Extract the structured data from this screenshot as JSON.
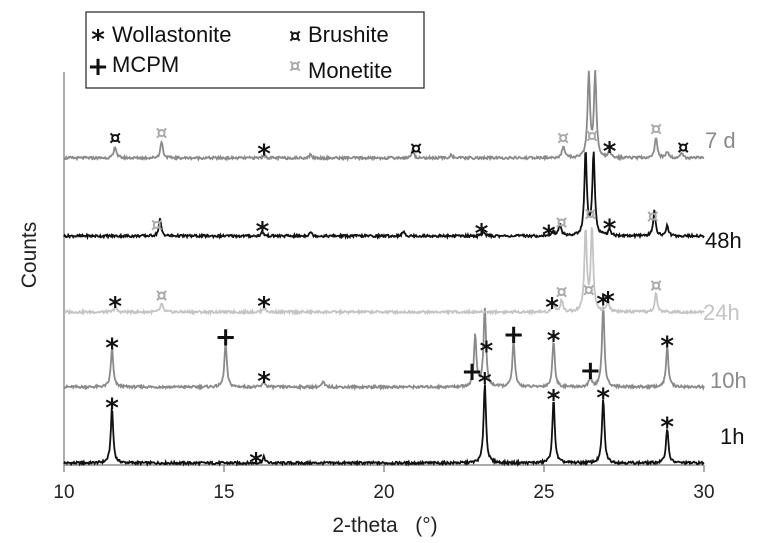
{
  "chart_data": {
    "type": "line",
    "xlabel": "2-theta   (°)",
    "ylabel": "Counts",
    "xlim": [
      10,
      30
    ],
    "xticks": [
      10,
      15,
      20,
      25,
      30
    ],
    "legend": {
      "placement": "top-left",
      "entries": [
        {
          "symbol": "*",
          "label": "Wollastonite",
          "color": "#111111"
        },
        {
          "symbol": "¤",
          "label": "Brushite",
          "color": "#111111"
        },
        {
          "symbol": "+",
          "label": "MCPM",
          "color": "#111111"
        },
        {
          "symbol": "¤",
          "label": "Monetite",
          "color": "#aaaaaa"
        }
      ]
    },
    "series": [
      {
        "name": "1h",
        "color": "#111111",
        "peaks": [
          [
            11.5,
            0.65
          ],
          [
            16.25,
            0.07
          ],
          [
            23.15,
            0.95
          ],
          [
            25.3,
            0.75
          ],
          [
            26.85,
            0.77
          ],
          [
            28.85,
            0.42
          ]
        ],
        "markers": [
          [
            11.5,
            "*"
          ],
          [
            16.0,
            "*"
          ],
          [
            23.15,
            "*"
          ],
          [
            25.3,
            "*"
          ],
          [
            26.85,
            "*"
          ],
          [
            28.85,
            "*"
          ]
        ]
      },
      {
        "name": "10h",
        "color": "#8a8a8a",
        "peaks": [
          [
            11.5,
            0.46
          ],
          [
            15.05,
            0.52
          ],
          [
            16.25,
            0.06
          ],
          [
            18.1,
            0.06
          ],
          [
            22.85,
            0.62
          ],
          [
            23.15,
            0.95
          ],
          [
            24.05,
            0.55
          ],
          [
            25.3,
            0.55
          ],
          [
            26.45,
            0.12
          ],
          [
            26.85,
            0.98
          ],
          [
            28.85,
            0.48
          ]
        ],
        "markers": [
          [
            11.5,
            "*"
          ],
          [
            15.05,
            "+"
          ],
          [
            16.25,
            "*"
          ],
          [
            22.75,
            "+"
          ],
          [
            23.2,
            "*"
          ],
          [
            24.05,
            "+"
          ],
          [
            25.3,
            "*"
          ],
          [
            26.45,
            "+"
          ],
          [
            26.85,
            "*"
          ],
          [
            28.85,
            "*"
          ]
        ]
      },
      {
        "name": "24h",
        "color": "#c4c4c4",
        "peaks": [
          [
            11.6,
            0.06
          ],
          [
            13.05,
            0.1
          ],
          [
            16.25,
            0.06
          ],
          [
            25.3,
            0.1
          ],
          [
            25.55,
            0.14
          ],
          [
            26.3,
            0.98
          ],
          [
            26.5,
            1.0
          ],
          [
            27.0,
            0.12
          ],
          [
            28.5,
            0.22
          ]
        ],
        "markers": [
          [
            11.6,
            "*"
          ],
          [
            13.05,
            "¤"
          ],
          [
            16.25,
            "*"
          ],
          [
            25.25,
            "*"
          ],
          [
            25.55,
            "¤"
          ],
          [
            26.4,
            "¤"
          ],
          [
            27.0,
            "*"
          ],
          [
            28.5,
            "¤"
          ]
        ]
      },
      {
        "name": "48h",
        "color": "#111111",
        "peaks": [
          [
            13.0,
            0.2
          ],
          [
            16.2,
            0.05
          ],
          [
            17.7,
            0.05
          ],
          [
            20.6,
            0.05
          ],
          [
            23.1,
            0.05
          ],
          [
            25.3,
            0.05
          ],
          [
            25.5,
            0.15
          ],
          [
            26.3,
            1.0
          ],
          [
            26.55,
            1.0
          ],
          [
            27.05,
            0.08
          ],
          [
            28.45,
            0.3
          ],
          [
            28.85,
            0.12
          ]
        ],
        "markers": [
          [
            12.9,
            "¤"
          ],
          [
            16.2,
            "*"
          ],
          [
            23.05,
            "*"
          ],
          [
            25.15,
            "*"
          ],
          [
            25.55,
            "¤"
          ],
          [
            26.45,
            "¤"
          ],
          [
            27.05,
            "*"
          ],
          [
            28.4,
            "¤"
          ]
        ]
      },
      {
        "name": "7 d",
        "color": "#8a8a8a",
        "peaks": [
          [
            11.6,
            0.14
          ],
          [
            13.05,
            0.2
          ],
          [
            16.25,
            0.04
          ],
          [
            17.7,
            0.04
          ],
          [
            20.9,
            0.09
          ],
          [
            22.1,
            0.04
          ],
          [
            25.6,
            0.14
          ],
          [
            26.4,
            1.0
          ],
          [
            26.6,
            1.0
          ],
          [
            27.05,
            0.07
          ],
          [
            28.5,
            0.25
          ],
          [
            28.85,
            0.08
          ],
          [
            29.3,
            0.06
          ]
        ],
        "markers": [
          [
            11.6,
            "¤b"
          ],
          [
            13.05,
            "¤"
          ],
          [
            16.25,
            "*"
          ],
          [
            21.0,
            "¤b"
          ],
          [
            25.6,
            "¤"
          ],
          [
            26.5,
            "¤"
          ],
          [
            27.05,
            "*"
          ],
          [
            28.5,
            "¤"
          ],
          [
            29.35,
            "¤b"
          ]
        ]
      }
    ]
  }
}
